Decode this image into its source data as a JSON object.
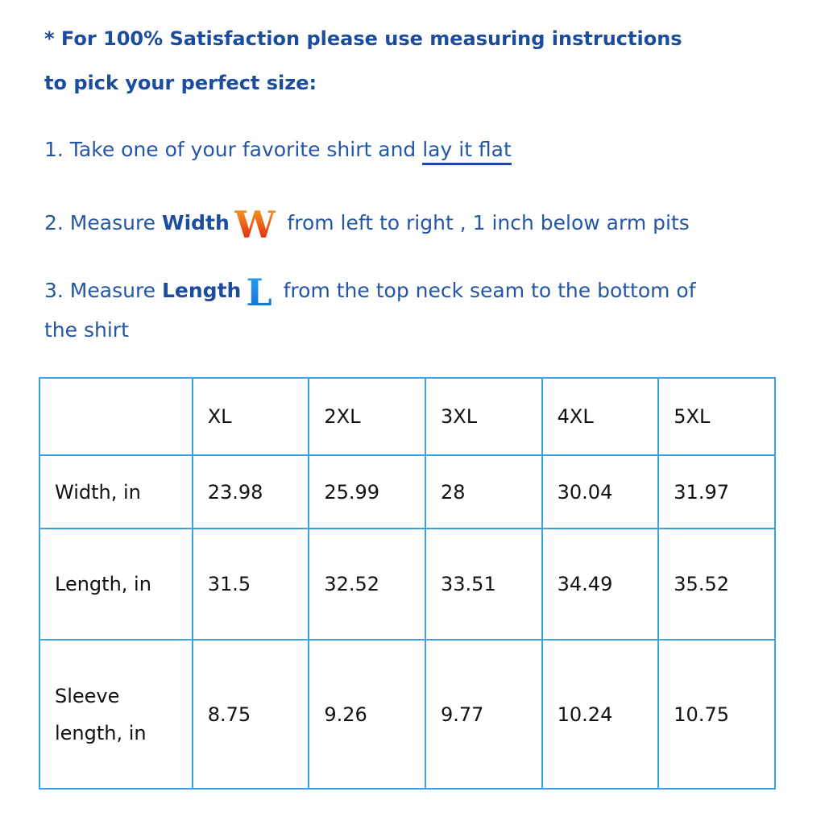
{
  "heading": {
    "line1": "* For 100% Satisfaction please use measuring instructions",
    "line2": "to pick your perfect size:"
  },
  "steps": [
    {
      "prefix": "1. Take one of your favorite shirt and ",
      "link": "lay it flat"
    },
    {
      "prefix": "2. Measure ",
      "bold": "Width",
      "icon": "W",
      "suffix": " from left to right , 1 inch below arm pits"
    },
    {
      "prefix": "3. Measure ",
      "bold": "Length",
      "icon": "L",
      "suffix": " from the top neck seam to the bottom of",
      "cont": "the shirt"
    }
  ],
  "table": {
    "headers": [
      "",
      "XL",
      "2XL",
      "3XL",
      "4XL",
      "5XL"
    ],
    "rows": [
      {
        "label": "Width, in",
        "values": [
          "23.98",
          "25.99",
          "28",
          "30.04",
          "31.97"
        ]
      },
      {
        "label": "Length, in",
        "values": [
          "31.5",
          "32.52",
          "33.51",
          "34.49",
          "35.52"
        ]
      },
      {
        "label": "Sleeve length, in",
        "values": [
          "8.75",
          "9.26",
          "9.77",
          "10.24",
          "10.75"
        ]
      }
    ]
  },
  "colors": {
    "heading": "#1c4c9c",
    "text": "#2456a4",
    "border": "#3aa0e8"
  }
}
